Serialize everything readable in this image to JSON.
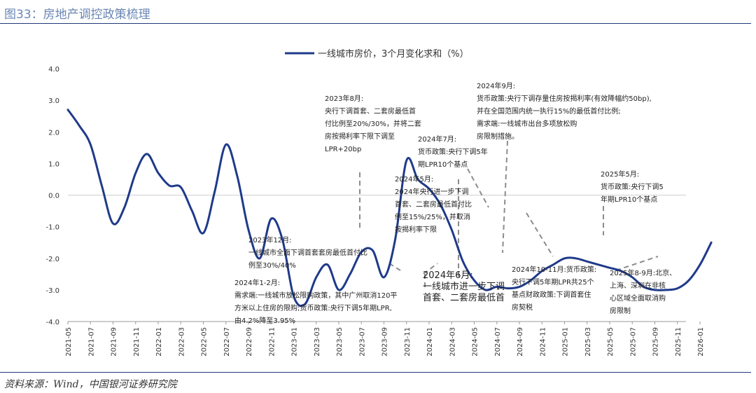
{
  "figure": {
    "title": "图33：房地产调控政策梳理",
    "source": "资料来源：Wind，中国银河证券研究院"
  },
  "chart_data": {
    "type": "line",
    "title": "",
    "xlabel": "",
    "ylabel": "",
    "ylim": [
      -4.0,
      4.0
    ],
    "yticks": [
      4.0,
      3.0,
      2.0,
      1.0,
      0.0,
      -1.0,
      -2.0,
      -3.0,
      -4.0
    ],
    "ytick_labels": [
      "4.0",
      "3.0",
      "2.0",
      "1.0",
      "0.0",
      "-1.0",
      "-2.0",
      "-3.0",
      "-4.0"
    ],
    "grid": false,
    "legend_position": "top",
    "categories": [
      "2021-05",
      "2021-07",
      "2021-09",
      "2021-11",
      "2022-01",
      "2022-03",
      "2022-05",
      "2022-07",
      "2022-09",
      "2022-11",
      "2023-01",
      "2023-03",
      "2023-05",
      "2023-07",
      "2023-09",
      "2023-11",
      "2024-01",
      "2024-03",
      "2024-05",
      "2024-07",
      "2024-09",
      "2024-11",
      "2025-01",
      "2025-03",
      "2025-05",
      "2025-07",
      "2025-09",
      "2025-11",
      "2026-01"
    ],
    "series": [
      {
        "name": "一线城市房价，3个月变化求和（%）",
        "color": "#1f3a8a",
        "x": [
          0,
          0.5,
          1,
          1.5,
          2,
          2.5,
          3,
          3.5,
          4,
          4.5,
          5,
          5.5,
          6,
          6.5,
          7,
          7.5,
          8,
          8.5,
          9,
          9.5,
          10,
          10.5,
          11,
          11.5,
          12,
          12.5,
          13,
          13.5,
          14,
          14.5,
          15,
          15.5,
          16,
          16.5,
          17,
          17.5,
          18,
          18.5,
          19,
          19.5,
          20,
          20.5,
          21,
          21.5,
          22,
          22.5,
          23,
          23.5,
          24,
          24.5,
          25,
          25.5,
          26,
          26.5,
          27,
          27.5,
          28,
          28.5
        ],
        "values": [
          2.7,
          2.2,
          1.6,
          0.3,
          -0.9,
          -0.4,
          0.7,
          1.3,
          0.7,
          0.3,
          0.25,
          -0.5,
          -1.2,
          0.1,
          1.6,
          0.6,
          -1.1,
          -2.0,
          -0.75,
          -1.4,
          -3.2,
          -3.45,
          -2.6,
          -2.2,
          -3.0,
          -2.5,
          -1.8,
          -1.75,
          -2.6,
          -1.4,
          1.1,
          0.5,
          0.2,
          -0.3,
          -1.1,
          -2.1,
          -2.7,
          -3.0,
          -2.9,
          -2.95,
          -2.9,
          -2.7,
          -2.4,
          -2.2,
          -2.0,
          -2.0,
          -2.1,
          -2.2,
          -2.3,
          -2.4,
          -2.6,
          -2.9,
          -3.0,
          -3.0,
          -2.95,
          -2.7,
          -2.2,
          -1.5
        ]
      }
    ],
    "annotations": [
      {
        "title": "2023年8月:",
        "lines": [
          "央行下调首套、二套房最低首",
          "付比例至20%/30%，并将二套",
          "房按揭利率下限下调至",
          "LPR+20bp"
        ]
      },
      {
        "title": "2023年12月:",
        "lines": [
          "一线城市全面下调首套套房最低首付比",
          "例至30%/40%"
        ]
      },
      {
        "title": "2024年1-2月:",
        "lines": [
          "需求端:一线城市放松限购政策，其中广州取消120平",
          "方米以上住房的限购;货币政策:央行下调5年期LPR,",
          "由4.2%降至3.95%"
        ]
      },
      {
        "title": "2024年5月:",
        "lines": [
          "2024年央行进一步下调",
          "首套、二套房最低首付比",
          "例至15%/25%，并取消",
          "按揭利率下限"
        ]
      },
      {
        "title": "2024年6月:",
        "lines": [
          "一线城市进一步下调",
          "首套、二套房最低首"
        ]
      },
      {
        "title": "2024年7月:",
        "lines": [
          "货币政策:央行下调5年",
          "期LPR10个基点"
        ]
      },
      {
        "title": "2024年9月:",
        "lines": [
          "货币政策:央行下调存量住房按揭利率(有效降幅约50bp),",
          "并在全国范围内统一执行15%的最低首付比例;",
          "需求端:一线城市出台多项放松购",
          "房限制措施。"
        ]
      },
      {
        "title": "2024年10-11月:",
        "lines": [
          "货币政策:",
          "央行下调5年期LPR共25个",
          "基点财政政策:下调首套住",
          "房契税"
        ]
      },
      {
        "title": "2025年5月:",
        "lines": [
          "货币政策:央行下调5",
          "年期LPR10个基点"
        ]
      },
      {
        "title": "2025年8-9月:",
        "lines": [
          "北京、",
          "上海、深圳在非核",
          "心区域全面取消购",
          "房限制"
        ]
      }
    ]
  }
}
